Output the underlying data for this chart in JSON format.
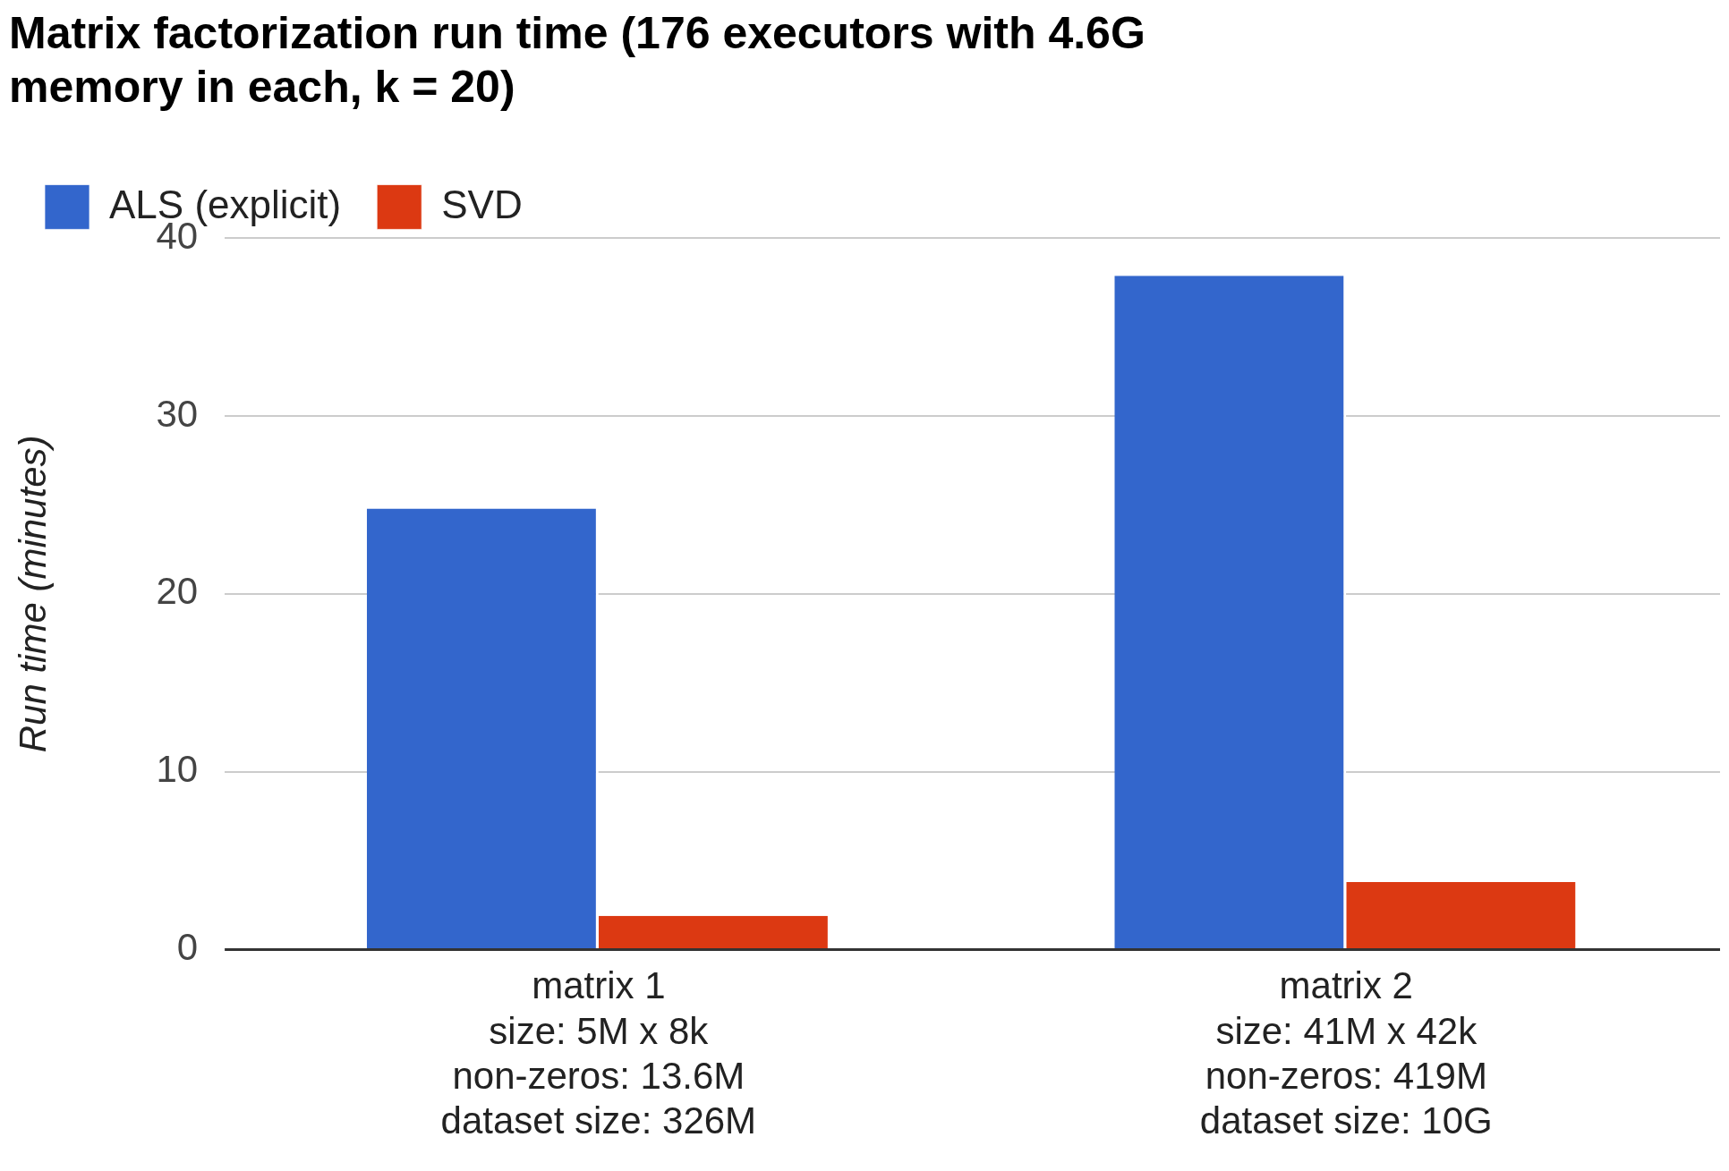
{
  "chart_data": {
    "type": "bar",
    "title": "Matrix factorization run time (176 executors with 4.6G memory in each, k = 20)",
    "ylabel": "Run time (minutes)",
    "categories": [
      "matrix 1\nsize: 5M x 8k\nnon-zeros: 13.6M\ndataset size: 326M",
      "matrix 2\nsize: 41M x 42k\nnon-zeros: 419M\ndataset size: 10G"
    ],
    "series": [
      {
        "name": "ALS (explicit)",
        "color": "#3366cc",
        "values": [
          24.8,
          37.9
        ]
      },
      {
        "name": "SVD",
        "color": "#dc3912",
        "values": [
          1.9,
          3.8
        ]
      }
    ],
    "ylim": [
      0,
      40
    ],
    "yticks": [
      0,
      10,
      20,
      30,
      40
    ],
    "grid": "y",
    "legend": "top left"
  }
}
